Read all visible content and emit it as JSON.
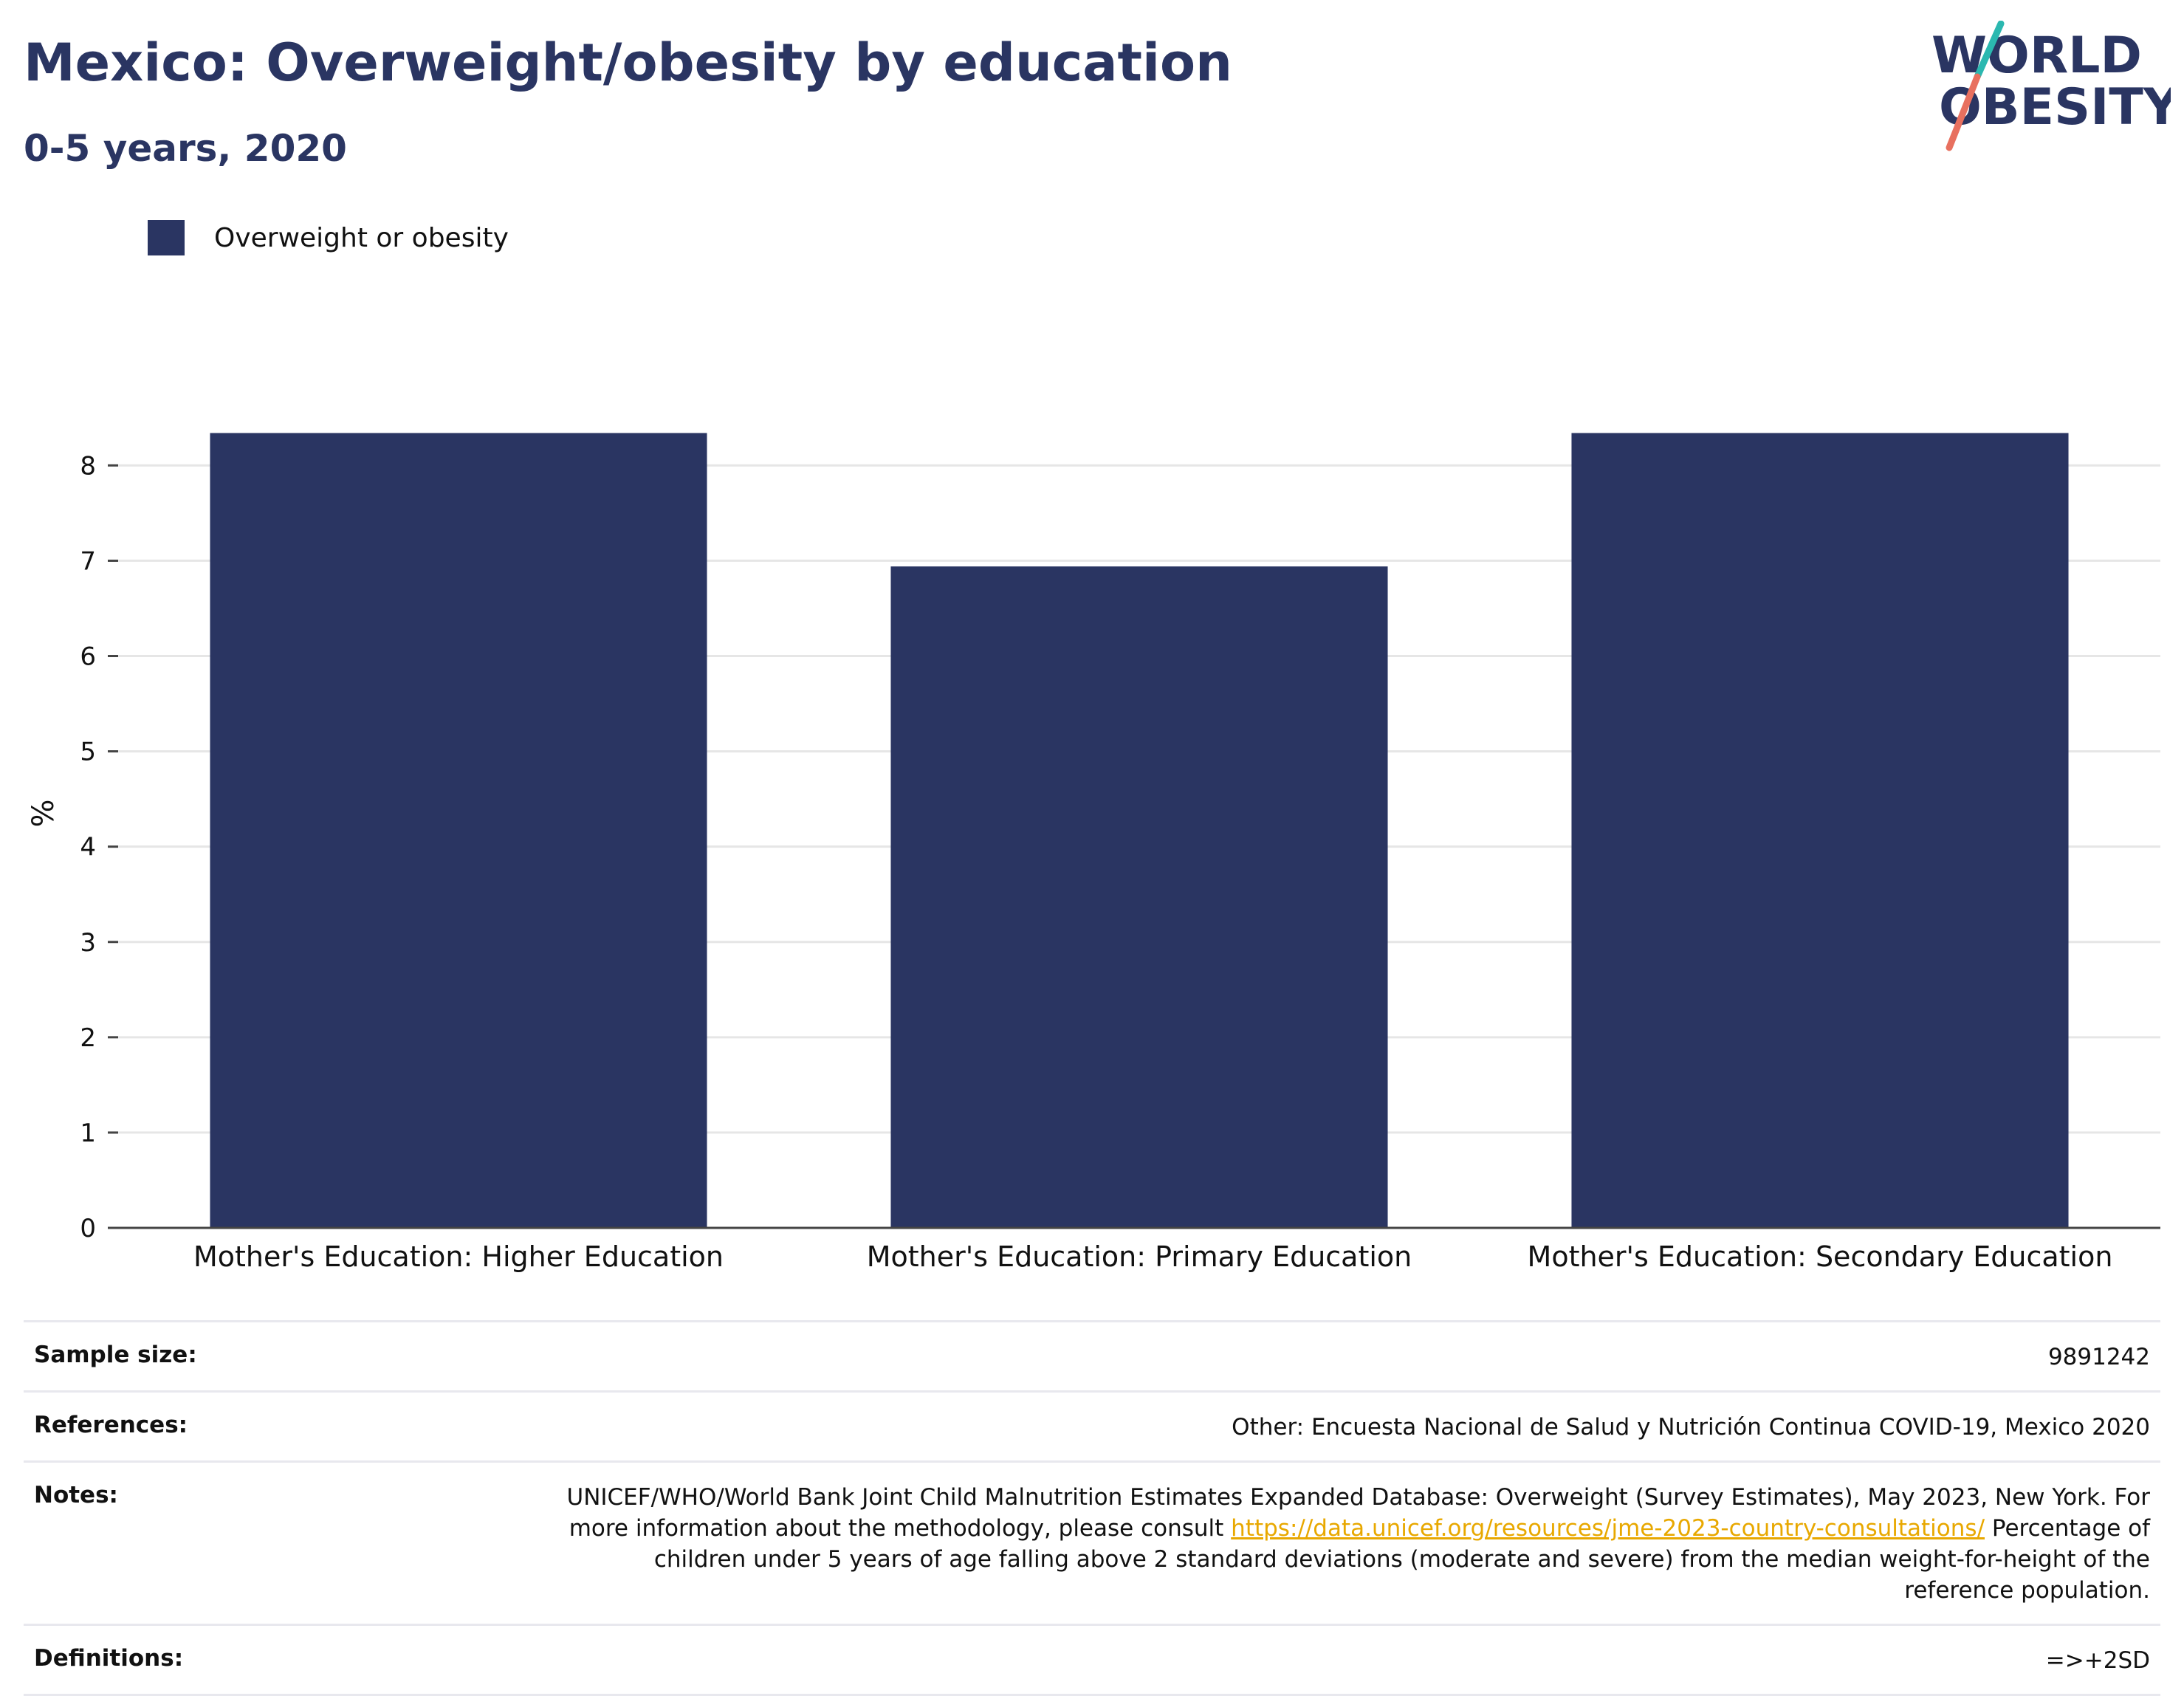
{
  "header": {
    "title": "Mexico: Overweight/obesity by education",
    "subtitle": "0-5 years, 2020"
  },
  "logo": {
    "line1": "WORLD",
    "line2": "OBESITY",
    "colors": {
      "text": "#2a3562",
      "slash_top": "#2bb8b0",
      "slash_bottom": "#e8705f"
    }
  },
  "colors": {
    "bar": "#2a3562",
    "grid": "#e6e6e6",
    "axis": "#444444",
    "link": "#e8a800"
  },
  "chart_data": {
    "type": "bar",
    "categories": [
      "Mother's Education: Higher Education",
      "Mother's Education: Primary Education",
      "Mother's Education: Secondary Education"
    ],
    "series": [
      {
        "name": "Overweight or obesity",
        "values": [
          8.34,
          6.94,
          8.34
        ]
      }
    ],
    "ylabel": "%",
    "xlabel": "",
    "ylim": [
      0,
      8.7
    ],
    "yticks": [
      0,
      1,
      2,
      3,
      4,
      5,
      6,
      7,
      8
    ],
    "grid": true,
    "legend_position": "top-left"
  },
  "info": {
    "sample_size_label": "Sample size:",
    "sample_size_value": "9891242",
    "references_label": "References:",
    "references_value": "Other: Encuesta Nacional de Salud y Nutrición Continua COVID-19, Mexico 2020",
    "notes_label": "Notes:",
    "notes_text_1": "UNICEF/WHO/World Bank Joint Child Malnutrition Estimates Expanded Database: Overweight (Survey Estimates), May 2023, New York. For more information about the methodology, please consult ",
    "notes_link": "https://data.unicef.org/resources/jme-2023-country-consultations/",
    "notes_text_2": " Percentage of children under 5 years of age falling above 2 standard deviations (moderate and severe) from the median weight-for-height of the reference population.",
    "definitions_label": "Definitions:",
    "definitions_value": "=>+2SD"
  }
}
